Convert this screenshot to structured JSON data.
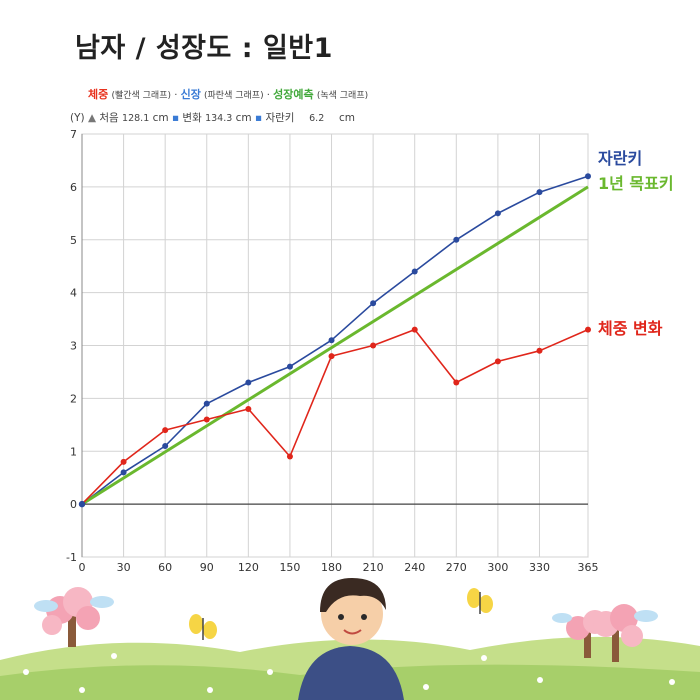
{
  "title": "남자 / 성장도 : 일반1",
  "legend": {
    "weight": {
      "word": "체중",
      "paren": "(빨간색 그래프)",
      "color": "#e8321e"
    },
    "height": {
      "word": "신장",
      "paren": "(파란색 그래프)",
      "color": "#3a7bd5"
    },
    "predict": {
      "word": "성장예측",
      "paren": "(녹색 그래프)",
      "color": "#41a83a"
    },
    "sep": "·"
  },
  "info": {
    "y_marker": "(Y)",
    "start_label": "처음",
    "start_value": "128.1",
    "start_unit": "cm",
    "change_label": "변화",
    "change_value": "134.3",
    "change_unit": "cm",
    "growth_label": "자란키",
    "growth_value": "6.2",
    "growth_unit": "cm"
  },
  "chart_data": {
    "type": "line",
    "x": [
      0,
      30,
      60,
      90,
      120,
      150,
      180,
      210,
      240,
      270,
      300,
      330,
      365
    ],
    "xlim": [
      0,
      365
    ],
    "ylim": [
      -1,
      7
    ],
    "x_ticks": [
      "0",
      "30",
      "60",
      "90",
      "120",
      "150",
      "180",
      "210",
      "240",
      "270",
      "300",
      "330",
      "365"
    ],
    "y_ticks": [
      "-1",
      "0",
      "1",
      "2",
      "3",
      "4",
      "5",
      "6",
      "7"
    ],
    "grid": true,
    "series": [
      {
        "name": "자란키",
        "color": "#2a4a9e",
        "markers": true,
        "values": [
          0,
          0.6,
          1.1,
          1.9,
          2.3,
          2.6,
          3.1,
          3.8,
          4.4,
          5.0,
          5.5,
          5.9,
          6.2
        ]
      },
      {
        "name": "1년 목표키",
        "color": "#6ab82e",
        "markers": false,
        "points": [
          [
            0,
            0
          ],
          [
            365,
            6.0
          ]
        ]
      },
      {
        "name": "체중 변화",
        "color": "#e0261b",
        "markers": true,
        "values": [
          0,
          0.8,
          1.4,
          1.6,
          1.8,
          0.9,
          2.8,
          3.0,
          3.3,
          2.3,
          2.7,
          2.9,
          3.3
        ]
      }
    ]
  }
}
